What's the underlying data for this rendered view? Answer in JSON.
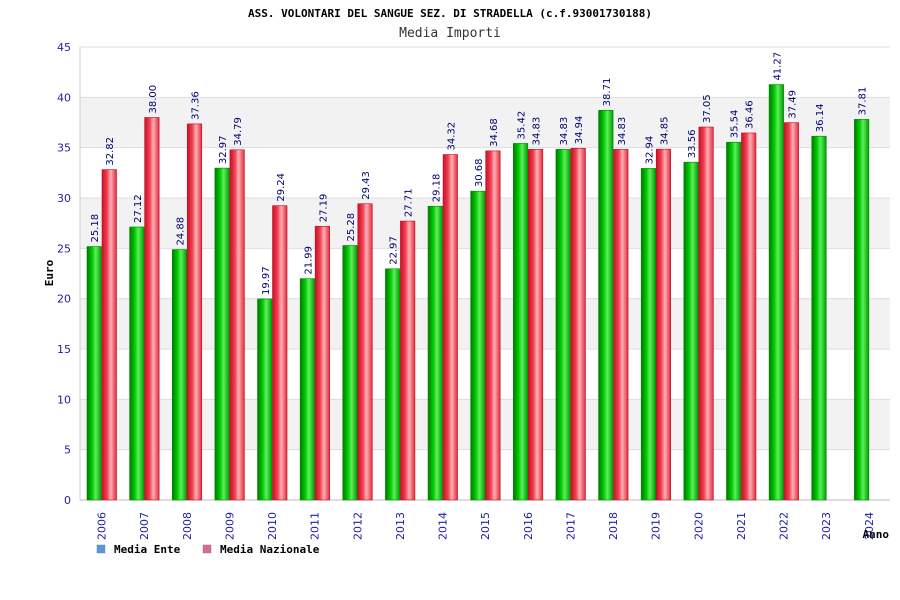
{
  "chart_data": {
    "type": "bar",
    "title": "ASS. VOLONTARI DEL SANGUE SEZ. DI STRADELLA (c.f.93001730188)",
    "subtitle": "Media Importi",
    "xlabel": "Anno",
    "ylabel": "Euro",
    "ylim": [
      0,
      45
    ],
    "yticks": [
      0,
      5,
      10,
      15,
      20,
      25,
      30,
      35,
      40,
      45
    ],
    "grid": true,
    "legend_position": "bottom-left",
    "categories": [
      "2006",
      "2007",
      "2008",
      "2009",
      "2010",
      "2011",
      "2012",
      "2013",
      "2014",
      "2015",
      "2016",
      "2017",
      "2018",
      "2019",
      "2020",
      "2021",
      "2022",
      "2023",
      "2024"
    ],
    "series": [
      {
        "name": "Media Ente",
        "color": "#00bb00",
        "legend_color": "#5599dd",
        "values": [
          25.18,
          27.12,
          24.88,
          32.97,
          19.97,
          21.99,
          25.28,
          22.97,
          29.18,
          30.68,
          35.42,
          34.83,
          38.71,
          32.94,
          33.56,
          35.54,
          41.27,
          36.14,
          37.81
        ],
        "labels": [
          "25.18",
          "27.12",
          "24.88",
          "32.97",
          "19.97",
          "21.99",
          "25.28",
          "22.97",
          "29.18",
          "30.68",
          "35.42",
          "34.83",
          "38.71",
          "32.94",
          "33.56",
          "35.54",
          "41.27",
          "36.14",
          "37.81"
        ]
      },
      {
        "name": "Media Nazionale",
        "color": "#ee3344",
        "legend_color": "#dd6699",
        "values": [
          32.82,
          38.0,
          37.36,
          34.79,
          29.24,
          27.19,
          29.43,
          27.71,
          34.32,
          34.68,
          34.83,
          34.94,
          34.83,
          34.85,
          37.05,
          36.46,
          37.49,
          null,
          null
        ],
        "labels": [
          "32.82",
          "38.00",
          "37.36",
          "34.79",
          "29.24",
          "27.19",
          "29.43",
          "27.71",
          "34.32",
          "34.68",
          "34.83",
          "34.94",
          "34.83",
          "34.85",
          "37.05",
          "36.46",
          "37.49",
          "",
          ""
        ]
      }
    ]
  }
}
